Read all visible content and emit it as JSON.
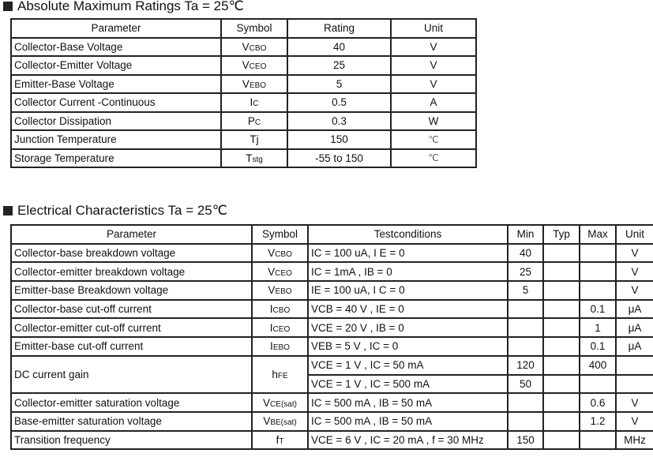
{
  "abs_max": {
    "title": "Absolute Maximum Ratings Ta = 25℃",
    "headers": [
      "Parameter",
      "Symbol",
      "Rating",
      "Unit"
    ],
    "rows": [
      {
        "parameter": "Collector-Base Voltage",
        "sym": "V",
        "sub": "CBO",
        "rating": "40",
        "unit": "V"
      },
      {
        "parameter": "Collector-Emitter Voltage",
        "sym": "V",
        "sub": "CEO",
        "rating": "25",
        "unit": "V"
      },
      {
        "parameter": "Emitter-Base Voltage",
        "sym": "V",
        "sub": "EBO",
        "rating": "5",
        "unit": "V"
      },
      {
        "parameter": "Collector Current -Continuous",
        "sym": "I",
        "sub": "C",
        "rating": "0.5",
        "unit": "A"
      },
      {
        "parameter": "Collector Dissipation",
        "sym": "P",
        "sub": "C",
        "rating": "0.3",
        "unit": "W"
      },
      {
        "parameter": "Junction Temperature",
        "sym": "Tj",
        "sub": "",
        "rating": "150",
        "unit": "℃"
      },
      {
        "parameter": "Storage Temperature",
        "sym": "T",
        "sub": "stg",
        "rating": "-55 to 150",
        "unit": "℃"
      }
    ]
  },
  "elec": {
    "title": "Electrical Characteristics Ta = 25℃",
    "headers": [
      "Parameter",
      "Symbol",
      "Testconditions",
      "Min",
      "Typ",
      "Max",
      "Unit"
    ],
    "rows": [
      {
        "parameter": "Collector-base breakdown voltage",
        "sym": "V",
        "sub": "CBO",
        "cond": "IC = 100 uA, I E = 0",
        "min": "40",
        "typ": "",
        "max": "",
        "unit": "V"
      },
      {
        "parameter": "Collector-emitter breakdown voltage",
        "sym": "V",
        "sub": "CEO",
        "cond": "IC = 1mA , IB = 0",
        "min": "25",
        "typ": "",
        "max": "",
        "unit": "V"
      },
      {
        "parameter": "Emitter-base Breakdown voltage",
        "sym": "V",
        "sub": "EBO",
        "cond": "IE = 100 uA, I C = 0",
        "min": "5",
        "typ": "",
        "max": "",
        "unit": "V"
      },
      {
        "parameter": "Collector-base cut-off current",
        "sym": "I",
        "sub": "CBO",
        "cond": "VCB = 40 V , IE = 0",
        "min": "",
        "typ": "",
        "max": "0.1",
        "unit": "μA"
      },
      {
        "parameter": "Collector-emitter cut-off current",
        "sym": "I",
        "sub": "CEO",
        "cond": "VCE = 20 V , IB = 0",
        "min": "",
        "typ": "",
        "max": "1",
        "unit": "μA"
      },
      {
        "parameter": "Emitter-base cut-off current",
        "sym": "I",
        "sub": "EBO",
        "cond": "VEB = 5 V , IC = 0",
        "min": "",
        "typ": "",
        "max": "0.1",
        "unit": "μA"
      }
    ],
    "hfe": {
      "parameter": "DC current gain",
      "sym": "h",
      "sub": "FE",
      "cond1": "VCE = 1 V , IC = 50 mA",
      "min1": "120",
      "typ1": "",
      "max1": "400",
      "unit1": "",
      "cond2": "VCE = 1 V , IC = 500 mA",
      "min2": "50",
      "typ2": "",
      "max2": "",
      "unit2": ""
    },
    "rows2": [
      {
        "parameter": "Collector-emitter saturation voltage",
        "sym": "V",
        "sub": "CE(sat)",
        "cond": "IC = 500 mA , IB = 50 mA",
        "min": "",
        "typ": "",
        "max": "0.6",
        "unit": "V"
      },
      {
        "parameter": "Base-emitter saturation voltage",
        "sym": "V",
        "sub": "BE(sat)",
        "cond": "IC = 500 mA , IB = 50 mA",
        "min": "",
        "typ": "",
        "max": "1.2",
        "unit": "V"
      },
      {
        "parameter": "Transition frequency",
        "sym": "f",
        "sub": "T",
        "cond": "VCE = 6 V , IC = 20 mA , f = 30 MHz",
        "min": "150",
        "typ": "",
        "max": "",
        "unit": "MHz"
      }
    ]
  }
}
